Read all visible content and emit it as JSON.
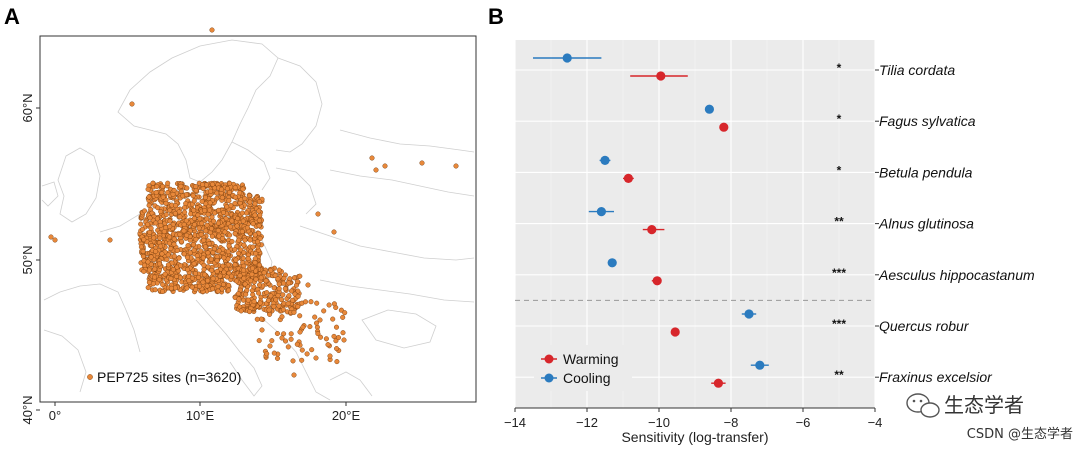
{
  "panels": {
    "a_label": "A",
    "b_label": "B"
  },
  "map": {
    "lat_labels": [
      "40°N",
      "50°N",
      "60°N"
    ],
    "lon_labels": [
      "0°",
      "10°E",
      "20°E"
    ],
    "legend_label": "PEP725 sites (n=3620)",
    "site_color": "#e8883a"
  },
  "chart_data": {
    "type": "forest",
    "xlabel": "Sensitivity (log-transfer)",
    "xlim": [
      -14,
      -4
    ],
    "xticks": [
      -14,
      -12,
      -10,
      -8,
      -6,
      -4
    ],
    "xtick_labels": [
      "−14",
      "−12",
      "−10",
      "−8",
      "−6",
      "−4"
    ],
    "legend_position": "bottom-left",
    "separator_after_index": 4,
    "series": [
      {
        "name": "Warming",
        "color": "#d7262b"
      },
      {
        "name": "Cooling",
        "color": "#2b7bbf"
      }
    ],
    "species": [
      {
        "name": "Tilia cordata",
        "significance": "*",
        "warming": {
          "value": -9.95,
          "low": -10.8,
          "high": -9.2
        },
        "cooling": {
          "value": -12.55,
          "low": -13.5,
          "high": -11.6
        }
      },
      {
        "name": "Fagus sylvatica",
        "significance": "*",
        "warming": {
          "value": -8.2,
          "low": -8.3,
          "high": -8.1
        },
        "cooling": {
          "value": -8.6,
          "low": -8.7,
          "high": -8.5
        }
      },
      {
        "name": "Betula pendula",
        "significance": "*",
        "warming": {
          "value": -10.85,
          "low": -11.0,
          "high": -10.7
        },
        "cooling": {
          "value": -11.5,
          "low": -11.65,
          "high": -11.35
        }
      },
      {
        "name": "Alnus glutinosa",
        "significance": "**",
        "warming": {
          "value": -10.2,
          "low": -10.45,
          "high": -9.85
        },
        "cooling": {
          "value": -11.6,
          "low": -11.95,
          "high": -11.25
        }
      },
      {
        "name": "Aesculus hippocastanum",
        "significance": "***",
        "warming": {
          "value": -10.05,
          "low": -10.2,
          "high": -9.95
        },
        "cooling": {
          "value": -11.3,
          "low": -11.42,
          "high": -11.18
        }
      },
      {
        "name": "Quercus robur",
        "significance": "***",
        "warming": {
          "value": -9.55,
          "low": -9.6,
          "high": -9.5
        },
        "cooling": {
          "value": -7.5,
          "low": -7.7,
          "high": -7.3
        }
      },
      {
        "name": "Fraxinus excelsior",
        "significance": "**",
        "warming": {
          "value": -8.35,
          "low": -8.55,
          "high": -8.15
        },
        "cooling": {
          "value": -7.2,
          "low": -7.45,
          "high": -6.95
        }
      }
    ]
  },
  "watermark": {
    "brand": "生态学者",
    "credit": "CSDN @生态学者"
  }
}
